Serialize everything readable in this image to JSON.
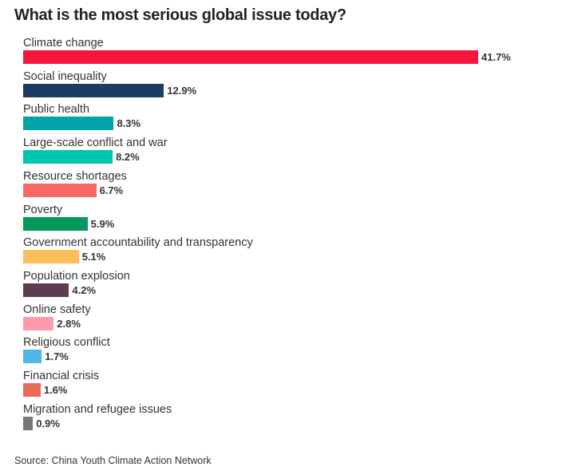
{
  "chart_data": {
    "type": "bar",
    "orientation": "horizontal",
    "title": "What is the most serious global issue today?",
    "source": "Source: China Youth Climate Action Network",
    "unit": "%",
    "categories": [
      "Climate change",
      "Social inequality",
      "Public health",
      "Large-scale conflict and war",
      "Resource shortages",
      "Poverty",
      "Government accountability and transparency",
      "Population explosion",
      "Online safety",
      "Religious conflict",
      "Financial crisis",
      "Migration and refugee issues"
    ],
    "values": [
      41.7,
      12.9,
      8.3,
      8.2,
      6.7,
      5.9,
      5.1,
      4.2,
      2.8,
      1.7,
      1.6,
      0.9
    ],
    "labels": [
      "41.7%",
      "12.9%",
      "8.3%",
      "8.2%",
      "6.7%",
      "5.9%",
      "5.1%",
      "4.2%",
      "2.8%",
      "1.7%",
      "1.6%",
      "0.9%"
    ],
    "colors": [
      "#f5163b",
      "#1c3d63",
      "#00a3a8",
      "#00c5b0",
      "#fa6a64",
      "#019a5b",
      "#fdbd5b",
      "#5d3b51",
      "#fd9aac",
      "#4fb6ec",
      "#ea6a5c",
      "#777777"
    ],
    "grid": false,
    "legend": "none"
  }
}
